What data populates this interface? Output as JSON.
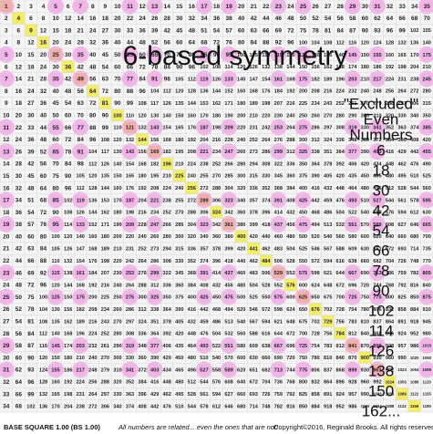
{
  "title": "6-based symmetry",
  "excluded": {
    "heading": [
      "\"Excluded\"",
      "Even",
      "Numbers"
    ],
    "numbers": [
      "6",
      "18",
      "30",
      "42",
      "54",
      "66",
      "78",
      "90",
      "102",
      "114",
      "126",
      "138",
      "150",
      "162..."
    ]
  },
  "footer": {
    "label": "BASE SQUARE 1.00 (BS 1.00)",
    "note": "All numbers are related... even the ones that are not!",
    "copyright": "Copyright©2016, Reginald Brooks. All rights reserved."
  },
  "table": {
    "rows": [
      [
        1,
        2,
        3,
        4,
        5,
        6,
        7,
        8,
        9,
        10,
        11,
        12,
        13,
        14,
        15,
        16,
        17,
        18,
        19,
        20,
        21,
        22,
        23,
        24,
        25,
        26,
        27,
        28,
        29,
        30,
        31,
        32,
        33,
        34,
        35
      ],
      [
        2,
        4,
        6,
        8,
        10,
        12,
        14,
        16,
        18,
        20,
        22,
        24,
        26,
        28,
        30,
        32,
        34,
        36,
        38,
        40,
        42,
        44,
        46,
        48,
        50,
        52,
        54,
        56,
        58,
        60,
        62,
        64,
        66,
        68,
        70
      ],
      [
        3,
        6,
        9,
        12,
        15,
        18,
        21,
        24,
        27,
        30,
        33,
        36,
        39,
        42,
        45,
        48,
        51,
        54,
        57,
        60,
        63,
        66,
        69,
        72,
        75,
        78,
        81,
        84,
        87,
        90,
        93,
        96,
        99,
        102,
        105
      ],
      [
        4,
        8,
        12,
        16,
        20,
        24,
        28,
        32,
        36,
        40,
        44,
        48,
        52,
        56,
        60,
        64,
        68,
        72,
        76,
        80,
        84,
        88,
        92,
        96,
        100,
        104,
        108,
        112,
        116,
        120,
        124,
        128,
        132,
        136,
        140
      ],
      [
        5,
        10,
        15,
        20,
        25,
        30,
        35,
        40,
        45,
        50,
        55,
        60,
        65,
        70,
        75,
        80,
        85,
        90,
        95,
        100,
        105,
        110,
        115,
        120,
        125,
        130,
        135,
        140,
        145,
        150,
        155,
        160,
        165,
        170,
        175
      ],
      [
        6,
        12,
        18,
        24,
        30,
        36,
        42,
        48,
        54,
        60,
        66,
        72,
        78,
        84,
        90,
        96,
        102,
        108,
        114,
        120,
        126,
        132,
        138,
        144,
        150,
        156,
        162,
        168,
        174,
        180,
        186,
        192,
        198,
        204,
        210
      ],
      [
        7,
        14,
        21,
        28,
        35,
        42,
        49,
        56,
        63,
        70,
        77,
        84,
        91,
        98,
        105,
        112,
        119,
        126,
        133,
        140,
        147,
        154,
        161,
        168,
        175,
        182,
        189,
        196,
        203,
        210,
        217,
        224,
        231,
        238,
        245
      ],
      [
        8,
        16,
        24,
        32,
        40,
        48,
        56,
        64,
        72,
        80,
        88,
        96,
        104,
        112,
        120,
        128,
        136,
        144,
        152,
        160,
        168,
        176,
        184,
        192,
        200,
        208,
        216,
        224,
        232,
        240,
        248,
        256,
        264,
        272,
        280
      ],
      [
        9,
        18,
        27,
        36,
        45,
        54,
        63,
        72,
        81,
        90,
        99,
        108,
        117,
        126,
        135,
        144,
        153,
        162,
        171,
        180,
        189,
        198,
        207,
        216,
        225,
        234,
        243,
        252,
        261,
        270,
        279,
        288,
        297,
        306,
        315
      ],
      [
        10,
        20,
        30,
        40,
        50,
        60,
        70,
        80,
        90,
        100,
        110,
        120,
        130,
        140,
        150,
        160,
        170,
        180,
        190,
        200,
        210,
        220,
        230,
        240,
        250,
        260,
        270,
        280,
        290,
        300,
        310,
        320,
        330,
        340,
        350
      ],
      [
        11,
        22,
        33,
        44,
        55,
        66,
        77,
        88,
        99,
        110,
        121,
        132,
        143,
        154,
        165,
        176,
        187,
        198,
        209,
        220,
        231,
        242,
        253,
        264,
        275,
        286,
        297,
        308,
        319,
        330,
        341,
        352,
        363,
        374,
        385
      ],
      [
        12,
        24,
        36,
        48,
        60,
        72,
        84,
        96,
        108,
        120,
        132,
        144,
        156,
        168,
        180,
        192,
        204,
        216,
        228,
        240,
        252,
        264,
        276,
        288,
        300,
        312,
        324,
        336,
        348,
        360,
        372,
        384,
        396,
        408,
        420
      ],
      [
        13,
        26,
        39,
        52,
        65,
        78,
        91,
        104,
        117,
        130,
        143,
        156,
        169,
        182,
        195,
        208,
        221,
        234,
        247,
        260,
        273,
        286,
        299,
        312,
        325,
        338,
        351,
        364,
        377,
        390,
        403,
        416,
        429,
        442,
        455
      ],
      [
        14,
        28,
        42,
        56,
        70,
        84,
        98,
        112,
        126,
        140,
        154,
        168,
        182,
        196,
        210,
        224,
        238,
        252,
        266,
        280,
        294,
        308,
        322,
        336,
        350,
        364,
        378,
        392,
        406,
        420,
        434,
        448,
        462,
        476,
        490
      ],
      [
        15,
        30,
        45,
        60,
        75,
        90,
        105,
        120,
        135,
        150,
        165,
        180,
        195,
        210,
        225,
        240,
        255,
        270,
        285,
        300,
        315,
        330,
        345,
        360,
        375,
        390,
        405,
        420,
        435,
        450,
        465,
        480,
        495,
        510,
        525
      ],
      [
        16,
        32,
        48,
        64,
        80,
        96,
        112,
        128,
        144,
        160,
        176,
        192,
        208,
        224,
        240,
        256,
        272,
        288,
        304,
        320,
        336,
        352,
        368,
        384,
        400,
        416,
        432,
        448,
        464,
        480,
        496,
        512,
        528,
        544,
        560
      ],
      [
        17,
        34,
        51,
        68,
        85,
        102,
        119,
        136,
        153,
        170,
        187,
        204,
        221,
        238,
        255,
        272,
        289,
        306,
        323,
        340,
        357,
        374,
        391,
        408,
        425,
        442,
        459,
        476,
        493,
        510,
        527,
        544,
        561,
        578,
        595
      ],
      [
        18,
        36,
        54,
        72,
        90,
        108,
        126,
        144,
        162,
        180,
        198,
        216,
        234,
        252,
        270,
        288,
        306,
        324,
        342,
        360,
        378,
        396,
        414,
        432,
        450,
        468,
        486,
        504,
        522,
        540,
        558,
        576,
        594,
        612,
        630
      ],
      [
        19,
        38,
        57,
        76,
        95,
        114,
        133,
        152,
        171,
        190,
        209,
        228,
        247,
        266,
        285,
        304,
        323,
        342,
        361,
        380,
        399,
        418,
        437,
        456,
        475,
        494,
        513,
        532,
        551,
        570,
        589,
        608,
        627,
        646,
        665
      ],
      [
        20,
        40,
        60,
        80,
        100,
        120,
        140,
        160,
        180,
        200,
        220,
        240,
        260,
        280,
        300,
        320,
        340,
        360,
        380,
        400,
        420,
        440,
        460,
        480,
        500,
        520,
        540,
        560,
        580,
        600,
        620,
        640,
        660,
        680,
        700
      ],
      [
        21,
        42,
        63,
        84,
        105,
        126,
        147,
        168,
        189,
        210,
        231,
        252,
        273,
        294,
        315,
        336,
        357,
        378,
        399,
        420,
        441,
        462,
        483,
        504,
        525,
        546,
        567,
        588,
        609,
        630,
        651,
        672,
        693,
        714,
        735
      ],
      [
        22,
        44,
        66,
        88,
        110,
        132,
        154,
        176,
        198,
        220,
        242,
        264,
        286,
        308,
        330,
        352,
        374,
        396,
        418,
        440,
        462,
        484,
        506,
        528,
        550,
        572,
        594,
        616,
        638,
        660,
        682,
        704,
        726,
        748,
        770
      ],
      [
        23,
        46,
        69,
        92,
        115,
        138,
        161,
        184,
        207,
        230,
        253,
        276,
        299,
        322,
        345,
        368,
        391,
        414,
        437,
        460,
        483,
        506,
        529,
        552,
        575,
        598,
        621,
        644,
        667,
        690,
        713,
        736,
        759,
        782,
        805
      ],
      [
        24,
        48,
        72,
        96,
        120,
        144,
        168,
        192,
        216,
        240,
        264,
        288,
        312,
        336,
        360,
        384,
        408,
        432,
        456,
        480,
        504,
        528,
        552,
        576,
        600,
        624,
        648,
        672,
        696,
        720,
        744,
        768,
        792,
        816,
        840
      ],
      [
        25,
        50,
        75,
        100,
        125,
        150,
        175,
        200,
        225,
        250,
        275,
        300,
        325,
        350,
        375,
        400,
        425,
        450,
        475,
        500,
        525,
        550,
        575,
        600,
        625,
        650,
        675,
        700,
        725,
        750,
        775,
        800,
        825,
        850,
        875
      ],
      [
        26,
        52,
        78,
        104,
        130,
        156,
        182,
        208,
        234,
        260,
        286,
        312,
        338,
        364,
        390,
        416,
        442,
        468,
        494,
        520,
        546,
        572,
        598,
        624,
        650,
        676,
        702,
        728,
        754,
        780,
        806,
        832,
        858,
        884,
        910
      ],
      [
        27,
        54,
        81,
        108,
        135,
        162,
        189,
        216,
        243,
        270,
        297,
        324,
        351,
        378,
        405,
        432,
        459,
        486,
        513,
        540,
        567,
        594,
        621,
        648,
        675,
        702,
        729,
        756,
        783,
        810,
        837,
        864,
        891,
        918,
        945
      ],
      [
        28,
        56,
        84,
        112,
        140,
        168,
        196,
        224,
        252,
        280,
        308,
        336,
        364,
        392,
        420,
        448,
        476,
        504,
        532,
        560,
        588,
        616,
        644,
        672,
        700,
        728,
        756,
        784,
        812,
        840,
        868,
        896,
        924,
        952,
        980
      ],
      [
        29,
        58,
        87,
        116,
        145,
        174,
        203,
        232,
        261,
        290,
        319,
        348,
        377,
        406,
        435,
        464,
        493,
        522,
        551,
        580,
        609,
        638,
        667,
        696,
        725,
        754,
        783,
        812,
        841,
        870,
        899,
        928,
        957,
        986,
        1015
      ],
      [
        30,
        60,
        90,
        120,
        150,
        180,
        210,
        240,
        270,
        300,
        330,
        360,
        390,
        420,
        450,
        480,
        510,
        540,
        570,
        600,
        630,
        660,
        690,
        720,
        750,
        780,
        810,
        840,
        870,
        900,
        930,
        960,
        990,
        1020,
        1050
      ],
      [
        31,
        62,
        93,
        124,
        155,
        186,
        217,
        248,
        279,
        310,
        341,
        372,
        403,
        434,
        465,
        496,
        527,
        558,
        589,
        620,
        651,
        682,
        713,
        744,
        775,
        806,
        837,
        868,
        899,
        930,
        961,
        992,
        1023,
        1054,
        1085
      ],
      [
        32,
        64,
        96,
        128,
        160,
        192,
        224,
        256,
        288,
        320,
        352,
        384,
        416,
        448,
        480,
        512,
        544,
        576,
        608,
        640,
        672,
        704,
        736,
        768,
        800,
        832,
        864,
        896,
        928,
        960,
        992,
        1024,
        1056,
        1088,
        1120
      ],
      [
        33,
        66,
        99,
        132,
        165,
        198,
        231,
        264,
        297,
        330,
        363,
        396,
        429,
        462,
        495,
        528,
        561,
        594,
        627,
        660,
        693,
        726,
        759,
        792,
        825,
        858,
        891,
        924,
        957,
        990,
        1023,
        1056,
        1089,
        1122,
        1155
      ],
      [
        34,
        68,
        102,
        136,
        170,
        204,
        238,
        272,
        306,
        340,
        374,
        408,
        442,
        476,
        510,
        544,
        578,
        612,
        646,
        680,
        714,
        748,
        782,
        816,
        850,
        884,
        918,
        952,
        986,
        1020,
        1054,
        1088,
        1122,
        1156,
        1190
      ]
    ]
  }
}
